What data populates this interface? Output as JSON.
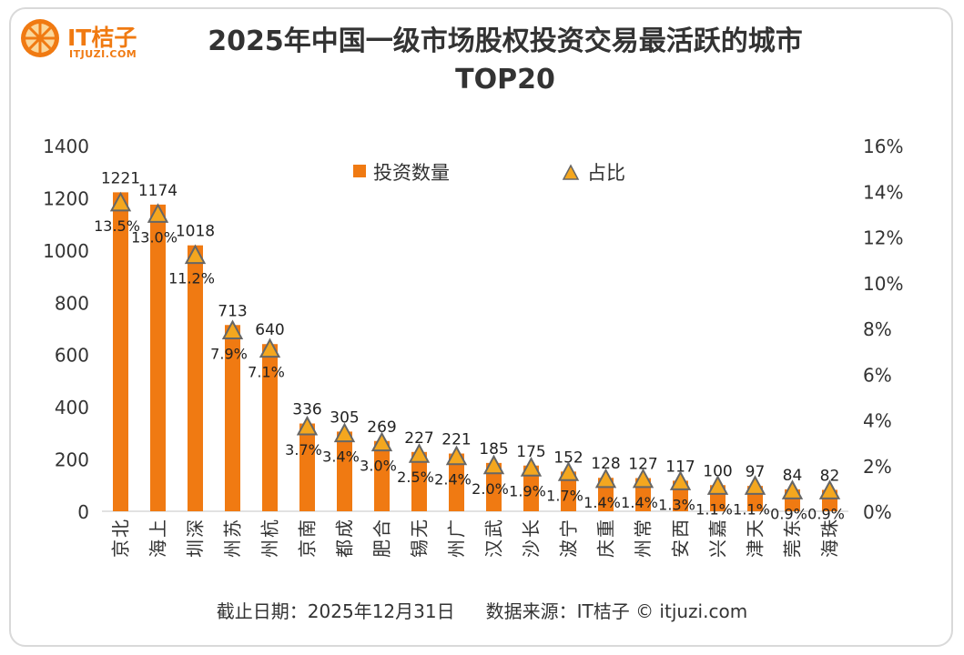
{
  "brand": {
    "name": "IT桔子",
    "url": "ITJUZI.COM"
  },
  "header": {
    "title": "2025年中国一级市场股权投资交易最活跃的城市",
    "subtitle": "TOP20"
  },
  "footer": {
    "date_text": "截止日期：2025年12月31日",
    "source_text": "数据来源：IT桔子 © itjuzi.com"
  },
  "colors": {
    "bar": "#f07a12",
    "marker_fill": "#f4a71f",
    "marker_stroke": "#666666",
    "text": "#333333"
  },
  "chart_data": {
    "type": "bar",
    "title": "2025年中国一级市场股权投资交易最活跃的城市 TOP20",
    "categories": [
      "北京",
      "上海",
      "深圳",
      "苏州",
      "杭州",
      "南京",
      "成都",
      "合肥",
      "无锡",
      "广州",
      "武汉",
      "长沙",
      "宁波",
      "重庆",
      "常州",
      "西安",
      "嘉兴",
      "天津",
      "东莞",
      "珠海"
    ],
    "series": [
      {
        "name": "投资数量",
        "type": "bar",
        "axis": "left",
        "values": [
          1221,
          1174,
          1018,
          713,
          640,
          336,
          305,
          269,
          227,
          221,
          185,
          175,
          152,
          128,
          127,
          117,
          100,
          97,
          84,
          82
        ],
        "labels": [
          "1221",
          "1174",
          "1018",
          "713",
          "640",
          "336",
          "305",
          "269",
          "227",
          "221",
          "185",
          "175",
          "152",
          "128",
          "127",
          "117",
          "100",
          "97",
          "84",
          "82"
        ]
      },
      {
        "name": "占比",
        "type": "scatter",
        "axis": "right",
        "values": [
          13.5,
          13.0,
          11.2,
          7.9,
          7.1,
          3.7,
          3.4,
          3.0,
          2.5,
          2.4,
          2.0,
          1.9,
          1.7,
          1.4,
          1.4,
          1.3,
          1.1,
          1.1,
          0.9,
          0.9
        ],
        "labels": [
          "13.5%",
          "13.0%",
          "11.2%",
          "7.9%",
          "7.1%",
          "3.7%",
          "3.4%",
          "3.0%",
          "2.5%",
          "2.4%",
          "2.0%",
          "1.9%",
          "1.7%",
          "1.4%",
          "1.4%",
          "1.3%",
          "1.1%",
          "1.1%",
          "0.9%",
          "0.9%"
        ]
      }
    ],
    "y_left": {
      "ylim": [
        0,
        1400
      ],
      "ticks": [
        "0",
        "200",
        "400",
        "600",
        "800",
        "1000",
        "1200",
        "1400"
      ]
    },
    "y_right": {
      "ylim": [
        0,
        16
      ],
      "ticks": [
        "0%",
        "2%",
        "4%",
        "6%",
        "8%",
        "10%",
        "12%",
        "14%",
        "16%"
      ]
    },
    "legend": {
      "position": "top-center",
      "items": [
        "投资数量",
        "占比"
      ]
    },
    "grid": false
  }
}
